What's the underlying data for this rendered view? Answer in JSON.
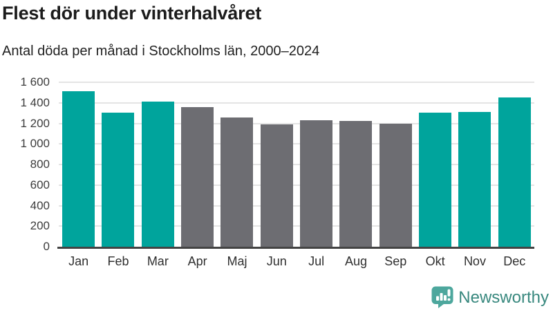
{
  "header": {
    "title": "Flest dör under vinterhalvåret",
    "subtitle": "Antal döda per månad i Stockholms län, 2000–2024"
  },
  "chart_data": {
    "type": "bar",
    "title": "Flest dör under vinterhalvåret",
    "subtitle": "Antal döda per månad i Stockholms län, 2000–2024",
    "categories": [
      "Jan",
      "Feb",
      "Mar",
      "Apr",
      "Maj",
      "Jun",
      "Jul",
      "Aug",
      "Sep",
      "Okt",
      "Nov",
      "Dec"
    ],
    "values": [
      1510,
      1305,
      1415,
      1355,
      1260,
      1190,
      1230,
      1225,
      1200,
      1305,
      1310,
      1450
    ],
    "bar_color_keys": [
      "teal",
      "teal",
      "teal",
      "gray",
      "gray",
      "gray",
      "gray",
      "gray",
      "gray",
      "teal",
      "teal",
      "teal"
    ],
    "colors": {
      "teal": "#00a49c",
      "gray": "#6d6d72",
      "gridline": "#e4e4e4",
      "axis_line": "#434343"
    },
    "xlabel": "",
    "ylabel": "",
    "ylim": [
      0,
      1600
    ],
    "yticks": [
      0,
      200,
      400,
      600,
      800,
      1000,
      1200,
      1400,
      1600
    ],
    "ytick_labels": [
      "0",
      "200",
      "400",
      "600",
      "800",
      "1 000",
      "1 200",
      "1 400",
      "1 600"
    ],
    "grid": true,
    "legend": false
  },
  "branding": {
    "logo_text": "Newsworthy",
    "logo_text_color": "#38887e",
    "logo_icon_color": "#4da79d"
  }
}
